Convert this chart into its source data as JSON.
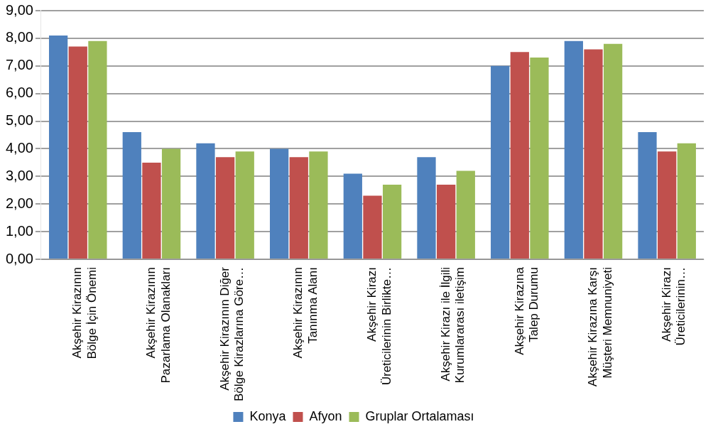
{
  "chart_data": {
    "type": "bar",
    "categories": [
      "Akşehir Kirazının Bölge İçin Önemi",
      "Akşehir Kirazının Pazarlama Olanakları",
      "Akşehir Kirazının Diğer Bölge Kirazlarına Göre…",
      "Akşehir Kirazının Tanınma Alanı",
      "Akşehir Kirazı Üreticilerinin Birlikte…",
      "Akşehir Kirazı ile İlgili Kurumlararası iletişim",
      "Akşehir Kirazına Talep Durumu",
      "Akşehir Kirazına Karşı Müşteri Memnuniyeti",
      "Akşehir Kirazı Üreticilerinin…"
    ],
    "series": [
      {
        "name": "Konya",
        "color": "#4f81bd",
        "values": [
          8.1,
          4.6,
          4.2,
          4.0,
          3.1,
          3.7,
          7.0,
          7.9,
          4.6
        ]
      },
      {
        "name": "Afyon",
        "color": "#c0504d",
        "values": [
          7.7,
          3.5,
          3.7,
          3.7,
          2.3,
          2.7,
          7.5,
          7.6,
          3.9
        ]
      },
      {
        "name": "Gruplar Ortalaması",
        "color": "#9bbb59",
        "values": [
          7.9,
          4.0,
          3.9,
          3.9,
          2.7,
          3.2,
          7.3,
          7.8,
          4.2
        ]
      }
    ],
    "ylim": [
      0,
      9
    ],
    "yticks": [
      {
        "value": 0,
        "label": "0,00"
      },
      {
        "value": 1,
        "label": "1,00"
      },
      {
        "value": 2,
        "label": "2,00"
      },
      {
        "value": 3,
        "label": "3,00"
      },
      {
        "value": 4,
        "label": "4,00"
      },
      {
        "value": 5,
        "label": "5,00"
      },
      {
        "value": 6,
        "label": "6,00"
      },
      {
        "value": 7,
        "label": "7,00"
      },
      {
        "value": 8,
        "label": "8,00"
      },
      {
        "value": 9,
        "label": "9,00"
      }
    ],
    "grid": "y",
    "legend": "bottom"
  }
}
